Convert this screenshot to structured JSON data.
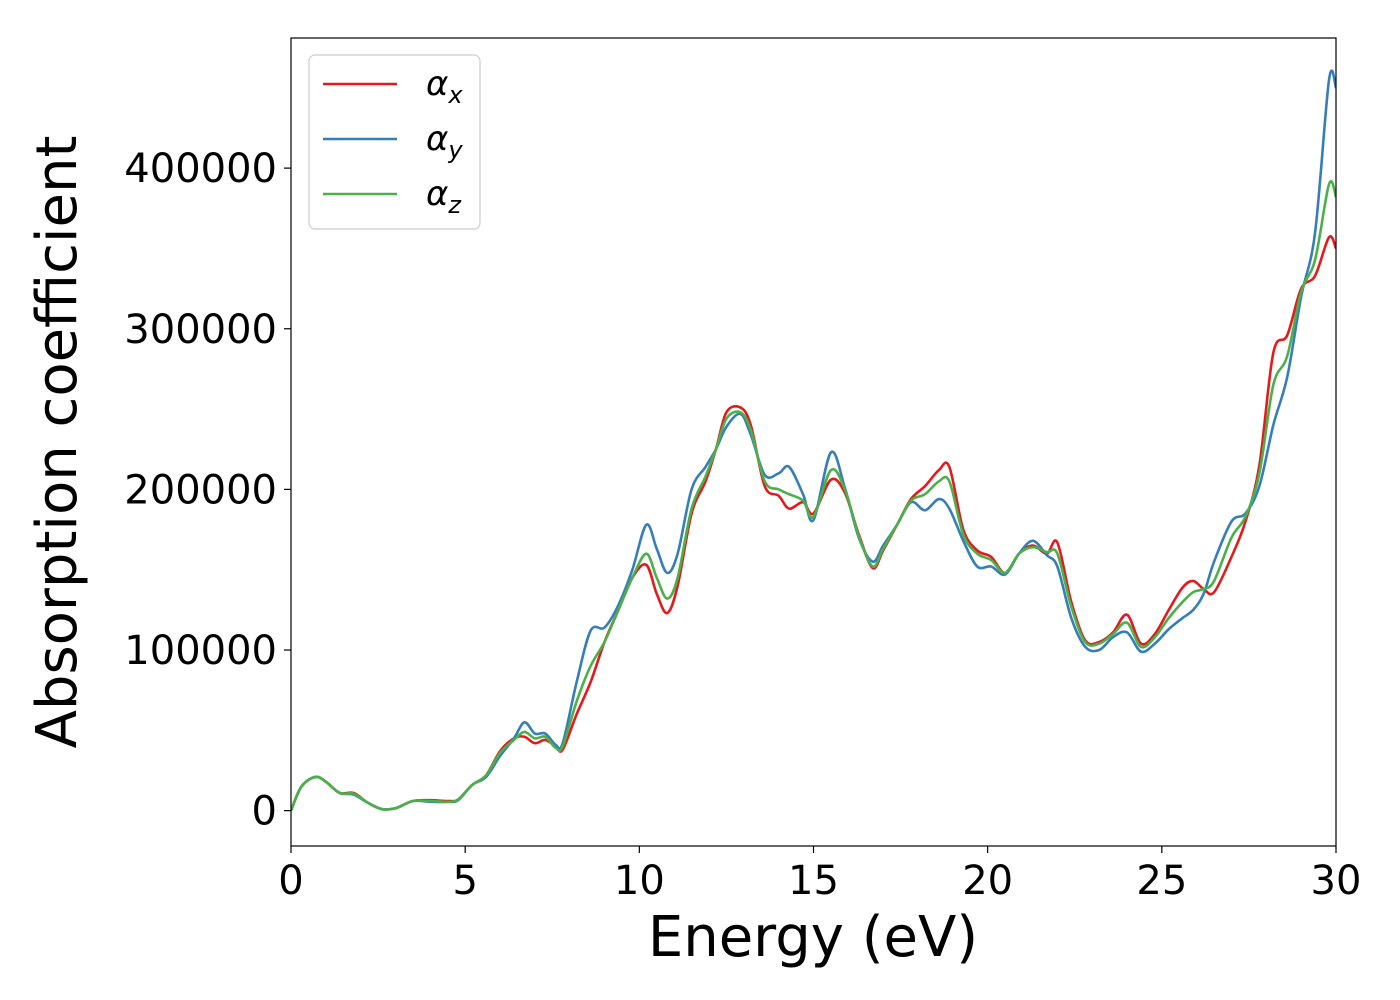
{
  "chart_data": {
    "type": "line",
    "title": "",
    "xlabel": "Energy (eV)",
    "ylabel": "Absorption coefficient",
    "xlim": [
      0,
      30
    ],
    "ylim": [
      -22000,
      481000
    ],
    "xticks": [
      0,
      5,
      10,
      15,
      20,
      25,
      30
    ],
    "yticks": [
      0,
      100000,
      200000,
      300000,
      400000
    ],
    "grid": false,
    "legend_position": "top-left",
    "series": [
      {
        "name": "α",
        "subscript": "x",
        "color": "#e41a1c",
        "points": [
          [
            0,
            0
          ],
          [
            0.3,
            15000
          ],
          [
            0.7,
            21000
          ],
          [
            1.0,
            18000
          ],
          [
            1.4,
            11000
          ],
          [
            1.8,
            11000
          ],
          [
            2.2,
            5000
          ],
          [
            2.6,
            1000
          ],
          [
            3.0,
            1500
          ],
          [
            3.5,
            6000
          ],
          [
            4.0,
            6500
          ],
          [
            4.5,
            6000
          ],
          [
            4.8,
            7000
          ],
          [
            5.2,
            16000
          ],
          [
            5.6,
            22000
          ],
          [
            6.0,
            37000
          ],
          [
            6.4,
            45000
          ],
          [
            6.7,
            46000
          ],
          [
            7.0,
            42000
          ],
          [
            7.3,
            44000
          ],
          [
            7.6,
            40000
          ],
          [
            7.8,
            38000
          ],
          [
            8.2,
            60000
          ],
          [
            8.6,
            80000
          ],
          [
            9.0,
            105000
          ],
          [
            9.4,
            125000
          ],
          [
            9.8,
            145000
          ],
          [
            10.2,
            153000
          ],
          [
            10.5,
            135000
          ],
          [
            10.8,
            123000
          ],
          [
            11.1,
            140000
          ],
          [
            11.5,
            185000
          ],
          [
            11.9,
            205000
          ],
          [
            12.2,
            225000
          ],
          [
            12.5,
            248000
          ],
          [
            12.9,
            251000
          ],
          [
            13.2,
            240000
          ],
          [
            13.6,
            202000
          ],
          [
            14.0,
            196000
          ],
          [
            14.3,
            188000
          ],
          [
            14.7,
            192000
          ],
          [
            15.0,
            185000
          ],
          [
            15.5,
            206000
          ],
          [
            15.9,
            198000
          ],
          [
            16.3,
            172000
          ],
          [
            16.7,
            151000
          ],
          [
            17.0,
            162000
          ],
          [
            17.4,
            178000
          ],
          [
            17.8,
            194000
          ],
          [
            18.2,
            202000
          ],
          [
            18.6,
            212000
          ],
          [
            18.9,
            214000
          ],
          [
            19.3,
            175000
          ],
          [
            19.7,
            162000
          ],
          [
            20.1,
            158000
          ],
          [
            20.5,
            148000
          ],
          [
            20.9,
            160000
          ],
          [
            21.3,
            165000
          ],
          [
            21.7,
            160000
          ],
          [
            22.0,
            167000
          ],
          [
            22.4,
            130000
          ],
          [
            22.8,
            106000
          ],
          [
            23.2,
            105000
          ],
          [
            23.6,
            111000
          ],
          [
            24.0,
            122000
          ],
          [
            24.4,
            104000
          ],
          [
            24.8,
            110000
          ],
          [
            25.2,
            125000
          ],
          [
            25.6,
            139000
          ],
          [
            25.9,
            143000
          ],
          [
            26.2,
            138000
          ],
          [
            26.5,
            136000
          ],
          [
            27.0,
            158000
          ],
          [
            27.4,
            180000
          ],
          [
            27.8,
            215000
          ],
          [
            28.2,
            285000
          ],
          [
            28.6,
            296000
          ],
          [
            29.0,
            325000
          ],
          [
            29.4,
            333000
          ],
          [
            29.8,
            357000
          ],
          [
            30.0,
            350000
          ]
        ]
      },
      {
        "name": "α",
        "subscript": "y",
        "color": "#377eb8",
        "points": [
          [
            0,
            0
          ],
          [
            0.3,
            15000
          ],
          [
            0.7,
            21000
          ],
          [
            1.0,
            18000
          ],
          [
            1.4,
            11000
          ],
          [
            1.8,
            10000
          ],
          [
            2.2,
            5000
          ],
          [
            2.6,
            1000
          ],
          [
            3.0,
            1500
          ],
          [
            3.5,
            6000
          ],
          [
            4.0,
            5500
          ],
          [
            4.5,
            5500
          ],
          [
            4.8,
            6500
          ],
          [
            5.2,
            16000
          ],
          [
            5.6,
            21000
          ],
          [
            6.0,
            34000
          ],
          [
            6.4,
            45000
          ],
          [
            6.7,
            55000
          ],
          [
            7.0,
            48000
          ],
          [
            7.3,
            48000
          ],
          [
            7.6,
            41000
          ],
          [
            7.8,
            42000
          ],
          [
            8.2,
            80000
          ],
          [
            8.6,
            112000
          ],
          [
            9.0,
            114000
          ],
          [
            9.4,
            128000
          ],
          [
            9.8,
            150000
          ],
          [
            10.2,
            178000
          ],
          [
            10.5,
            163000
          ],
          [
            10.8,
            148000
          ],
          [
            11.1,
            160000
          ],
          [
            11.5,
            200000
          ],
          [
            11.9,
            214000
          ],
          [
            12.2,
            225000
          ],
          [
            12.5,
            239000
          ],
          [
            12.9,
            247000
          ],
          [
            13.2,
            234000
          ],
          [
            13.6,
            209000
          ],
          [
            14.0,
            210000
          ],
          [
            14.3,
            214000
          ],
          [
            14.7,
            197000
          ],
          [
            15.0,
            181000
          ],
          [
            15.5,
            223000
          ],
          [
            15.9,
            201000
          ],
          [
            16.3,
            170000
          ],
          [
            16.7,
            155000
          ],
          [
            17.0,
            165000
          ],
          [
            17.4,
            178000
          ],
          [
            17.8,
            192000
          ],
          [
            18.2,
            187000
          ],
          [
            18.6,
            194000
          ],
          [
            18.9,
            188000
          ],
          [
            19.3,
            168000
          ],
          [
            19.7,
            152000
          ],
          [
            20.1,
            152000
          ],
          [
            20.5,
            147000
          ],
          [
            20.9,
            160000
          ],
          [
            21.3,
            168000
          ],
          [
            21.7,
            159000
          ],
          [
            22.0,
            152000
          ],
          [
            22.4,
            120000
          ],
          [
            22.8,
            102000
          ],
          [
            23.2,
            100000
          ],
          [
            23.6,
            108000
          ],
          [
            24.0,
            111000
          ],
          [
            24.4,
            99000
          ],
          [
            24.8,
            104000
          ],
          [
            25.2,
            113000
          ],
          [
            25.6,
            120000
          ],
          [
            25.9,
            125000
          ],
          [
            26.2,
            135000
          ],
          [
            26.5,
            155000
          ],
          [
            27.0,
            180000
          ],
          [
            27.4,
            185000
          ],
          [
            27.8,
            202000
          ],
          [
            28.2,
            240000
          ],
          [
            28.6,
            270000
          ],
          [
            29.0,
            320000
          ],
          [
            29.4,
            360000
          ],
          [
            29.8,
            455000
          ],
          [
            30.0,
            450000
          ]
        ]
      },
      {
        "name": "α",
        "subscript": "z",
        "color": "#4daf4a",
        "points": [
          [
            0,
            0
          ],
          [
            0.3,
            15000
          ],
          [
            0.7,
            21000
          ],
          [
            1.0,
            18000
          ],
          [
            1.4,
            11000
          ],
          [
            1.8,
            10500
          ],
          [
            2.2,
            5000
          ],
          [
            2.6,
            1000
          ],
          [
            3.0,
            1500
          ],
          [
            3.5,
            6000
          ],
          [
            4.0,
            6000
          ],
          [
            4.5,
            5500
          ],
          [
            4.8,
            7000
          ],
          [
            5.2,
            16000
          ],
          [
            5.6,
            22000
          ],
          [
            6.0,
            36000
          ],
          [
            6.4,
            44000
          ],
          [
            6.7,
            49000
          ],
          [
            7.0,
            45000
          ],
          [
            7.3,
            46000
          ],
          [
            7.6,
            39000
          ],
          [
            7.8,
            40000
          ],
          [
            8.2,
            68000
          ],
          [
            8.6,
            90000
          ],
          [
            9.0,
            105000
          ],
          [
            9.4,
            125000
          ],
          [
            9.8,
            145000
          ],
          [
            10.2,
            160000
          ],
          [
            10.5,
            145000
          ],
          [
            10.8,
            132000
          ],
          [
            11.1,
            145000
          ],
          [
            11.5,
            188000
          ],
          [
            11.9,
            208000
          ],
          [
            12.2,
            225000
          ],
          [
            12.5,
            244000
          ],
          [
            12.9,
            248000
          ],
          [
            13.2,
            237000
          ],
          [
            13.6,
            205000
          ],
          [
            14.0,
            200000
          ],
          [
            14.3,
            197000
          ],
          [
            14.7,
            193000
          ],
          [
            15.0,
            183000
          ],
          [
            15.5,
            212000
          ],
          [
            15.9,
            200000
          ],
          [
            16.3,
            171000
          ],
          [
            16.7,
            152000
          ],
          [
            17.0,
            163000
          ],
          [
            17.4,
            178000
          ],
          [
            17.8,
            193000
          ],
          [
            18.2,
            197000
          ],
          [
            18.6,
            205000
          ],
          [
            18.9,
            205000
          ],
          [
            19.3,
            172000
          ],
          [
            19.7,
            160000
          ],
          [
            20.1,
            156000
          ],
          [
            20.5,
            148000
          ],
          [
            20.9,
            160000
          ],
          [
            21.3,
            164000
          ],
          [
            21.7,
            161000
          ],
          [
            22.0,
            160000
          ],
          [
            22.4,
            127000
          ],
          [
            22.8,
            105000
          ],
          [
            23.2,
            104000
          ],
          [
            23.6,
            110000
          ],
          [
            24.0,
            117000
          ],
          [
            24.4,
            102000
          ],
          [
            24.8,
            108000
          ],
          [
            25.2,
            120000
          ],
          [
            25.6,
            130000
          ],
          [
            25.9,
            136000
          ],
          [
            26.2,
            138000
          ],
          [
            26.5,
            143000
          ],
          [
            27.0,
            170000
          ],
          [
            27.4,
            183000
          ],
          [
            27.8,
            210000
          ],
          [
            28.2,
            265000
          ],
          [
            28.6,
            283000
          ],
          [
            29.0,
            323000
          ],
          [
            29.4,
            343000
          ],
          [
            29.8,
            390000
          ],
          [
            30.0,
            382000
          ]
        ]
      }
    ]
  }
}
